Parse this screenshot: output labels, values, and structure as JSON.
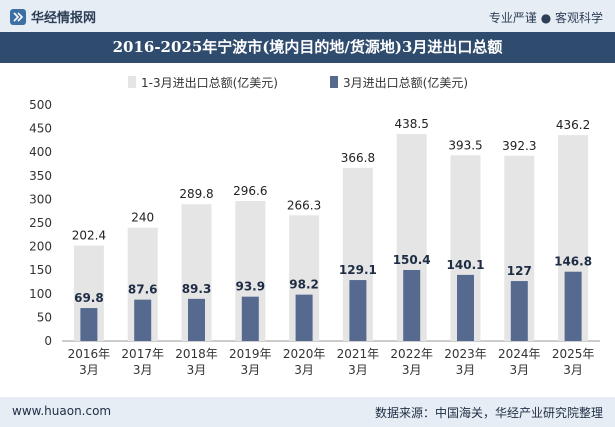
{
  "header": {
    "brand": "华经情报网",
    "tagline": "专业严谨 ● 客观科学"
  },
  "footer": {
    "website": "www.huaon.com",
    "source": "数据来源：中国海关，华经产业研究院整理"
  },
  "colors": {
    "total_bar": "#e5e5e5",
    "month_bar": "#56698f",
    "title_bg": "#2f4b6e",
    "header_bg": "#e6edf4"
  },
  "chart_data": {
    "type": "bar",
    "title": "2016-2025年宁波市(境内目的地/货源地)3月进出口总额",
    "categories": [
      "2016年3月",
      "2017年3月",
      "2018年3月",
      "2019年3月",
      "2020年3月",
      "2021年3月",
      "2022年3月",
      "2023年3月",
      "2024年3月",
      "2025年3月"
    ],
    "series": [
      {
        "name": "1-3月进出口总额(亿美元)",
        "values": [
          202.4,
          240,
          289.8,
          296.6,
          266.3,
          366.8,
          438.5,
          393.5,
          392.3,
          436.2
        ]
      },
      {
        "name": "3月进出口总额(亿美元)",
        "values": [
          69.8,
          87.6,
          89.3,
          93.9,
          98.2,
          129.1,
          150.4,
          140.1,
          127,
          146.8
        ]
      }
    ],
    "ylim": [
      0,
      500
    ],
    "yticks": [
      0,
      50,
      100,
      150,
      200,
      250,
      300,
      350,
      400,
      450,
      500
    ],
    "legend_position": "top-center",
    "grid": false
  }
}
